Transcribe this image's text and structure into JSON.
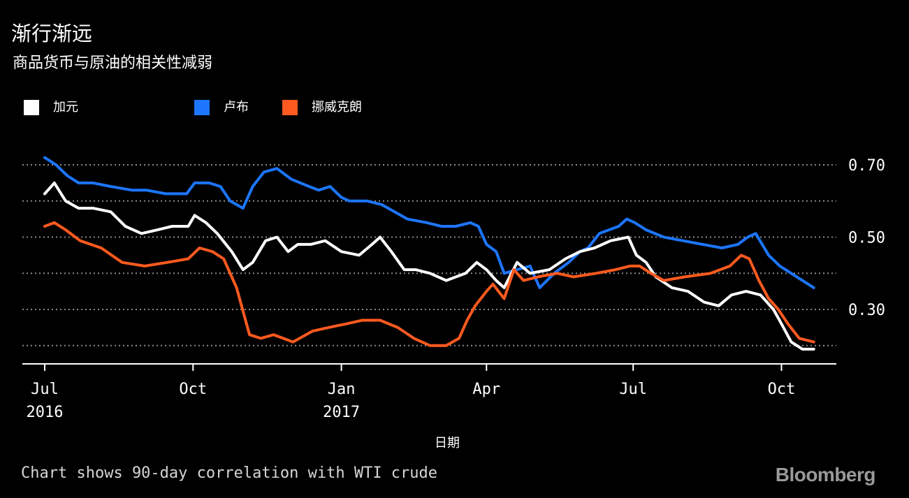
{
  "title": "渐行渐远",
  "subtitle": "商品货币与原油的相关性减弱",
  "xaxis_title": "日期",
  "footnote": "Chart shows 90-day correlation with WTI crude",
  "brand": "Bloomberg",
  "legend": [
    {
      "label": "加元",
      "color": "#ffffff"
    },
    {
      "label": "卢布",
      "color": "#1c76ff"
    },
    {
      "label": "挪威克朗",
      "color": "#ff5a1f"
    }
  ],
  "chart_data": {
    "type": "line",
    "title": "渐行渐远",
    "subtitle": "商品货币与原油的相关性减弱",
    "xlabel": "日期",
    "ylabel": "",
    "ylim": [
      0.17,
      0.75
    ],
    "x_range": [
      "2016-07-01",
      "2017-10-22"
    ],
    "y_ticks": [
      0.3,
      0.5,
      0.7
    ],
    "y_tick_labels": [
      "0.30",
      "0.50",
      "0.70"
    ],
    "y_gridlines": [
      0.2,
      0.3,
      0.4,
      0.5,
      0.6,
      0.7
    ],
    "grid": true,
    "legend_position": "top-left",
    "x_ticks": [
      {
        "date": "2016-07-01",
        "label": "Jul",
        "sublabel": "2016"
      },
      {
        "date": "2016-10-01",
        "label": "Oct",
        "sublabel": ""
      },
      {
        "date": "2017-01-01",
        "label": "Jan",
        "sublabel": "2017"
      },
      {
        "date": "2017-04-01",
        "label": "Apr",
        "sublabel": ""
      },
      {
        "date": "2017-07-01",
        "label": "Jul",
        "sublabel": ""
      },
      {
        "date": "2017-10-01",
        "label": "Oct",
        "sublabel": ""
      }
    ],
    "series": [
      {
        "name": "卢布",
        "color": "#1c76ff",
        "x": [
          "2016-07-01",
          "2016-07-08",
          "2016-07-15",
          "2016-07-22",
          "2016-07-31",
          "2016-08-11",
          "2016-08-24",
          "2016-09-02",
          "2016-09-14",
          "2016-09-27",
          "2016-10-02",
          "2016-10-11",
          "2016-10-18",
          "2016-10-24",
          "2016-11-01",
          "2016-11-07",
          "2016-11-14",
          "2016-11-22",
          "2016-12-01",
          "2016-12-12",
          "2016-12-18",
          "2016-12-25",
          "2017-01-01",
          "2017-01-06",
          "2017-01-17",
          "2017-01-26",
          "2017-02-03",
          "2017-02-11",
          "2017-02-23",
          "2017-03-04",
          "2017-03-13",
          "2017-03-22",
          "2017-03-27",
          "2017-04-01",
          "2017-04-07",
          "2017-04-12",
          "2017-04-20",
          "2017-04-28",
          "2017-05-04",
          "2017-05-13",
          "2017-05-22",
          "2017-05-29",
          "2017-06-03",
          "2017-06-10",
          "2017-06-16",
          "2017-06-22",
          "2017-06-27",
          "2017-07-02",
          "2017-07-09",
          "2017-07-20",
          "2017-08-01",
          "2017-08-13",
          "2017-08-25",
          "2017-09-04",
          "2017-09-10",
          "2017-09-15",
          "2017-09-23",
          "2017-09-30",
          "2017-10-07",
          "2017-10-14",
          "2017-10-21"
        ],
        "values": [
          0.72,
          0.7,
          0.67,
          0.65,
          0.65,
          0.64,
          0.63,
          0.63,
          0.62,
          0.62,
          0.65,
          0.65,
          0.64,
          0.6,
          0.58,
          0.64,
          0.68,
          0.69,
          0.66,
          0.64,
          0.63,
          0.64,
          0.61,
          0.6,
          0.6,
          0.59,
          0.57,
          0.55,
          0.54,
          0.53,
          0.53,
          0.54,
          0.53,
          0.48,
          0.46,
          0.4,
          0.41,
          0.42,
          0.36,
          0.4,
          0.43,
          0.46,
          0.47,
          0.51,
          0.52,
          0.53,
          0.55,
          0.54,
          0.52,
          0.5,
          0.49,
          0.48,
          0.47,
          0.48,
          0.5,
          0.51,
          0.45,
          0.42,
          0.4,
          0.38,
          0.36
        ]
      },
      {
        "name": "加元",
        "color": "#ffffff",
        "x": [
          "2016-07-01",
          "2016-07-07",
          "2016-07-14",
          "2016-07-22",
          "2016-07-31",
          "2016-08-11",
          "2016-08-20",
          "2016-08-30",
          "2016-09-09",
          "2016-09-18",
          "2016-09-28",
          "2016-10-02",
          "2016-10-09",
          "2016-10-16",
          "2016-10-25",
          "2016-11-01",
          "2016-11-07",
          "2016-11-15",
          "2016-11-22",
          "2016-11-29",
          "2016-12-05",
          "2016-12-13",
          "2016-12-22",
          "2017-01-01",
          "2017-01-12",
          "2017-01-20",
          "2017-01-25",
          "2017-02-01",
          "2017-02-09",
          "2017-02-16",
          "2017-02-25",
          "2017-03-07",
          "2017-03-19",
          "2017-03-26",
          "2017-04-01",
          "2017-04-07",
          "2017-04-12",
          "2017-04-20",
          "2017-04-28",
          "2017-05-10",
          "2017-05-20",
          "2017-05-29",
          "2017-06-07",
          "2017-06-17",
          "2017-06-28",
          "2017-07-03",
          "2017-07-09",
          "2017-07-15",
          "2017-07-25",
          "2017-08-04",
          "2017-08-14",
          "2017-08-23",
          "2017-08-31",
          "2017-09-09",
          "2017-09-18",
          "2017-09-26",
          "2017-10-01",
          "2017-10-07",
          "2017-10-14",
          "2017-10-21"
        ],
        "values": [
          0.62,
          0.65,
          0.6,
          0.58,
          0.58,
          0.57,
          0.53,
          0.51,
          0.52,
          0.53,
          0.53,
          0.56,
          0.54,
          0.51,
          0.46,
          0.41,
          0.43,
          0.49,
          0.5,
          0.46,
          0.48,
          0.48,
          0.49,
          0.46,
          0.45,
          0.48,
          0.5,
          0.46,
          0.41,
          0.41,
          0.4,
          0.38,
          0.4,
          0.43,
          0.41,
          0.38,
          0.36,
          0.43,
          0.4,
          0.41,
          0.44,
          0.46,
          0.47,
          0.49,
          0.5,
          0.45,
          0.43,
          0.39,
          0.36,
          0.35,
          0.32,
          0.31,
          0.34,
          0.35,
          0.34,
          0.3,
          0.26,
          0.21,
          0.19,
          0.19
        ]
      },
      {
        "name": "挪威克朗",
        "color": "#ff5a1f",
        "x": [
          "2016-07-01",
          "2016-07-07",
          "2016-07-14",
          "2016-07-23",
          "2016-08-05",
          "2016-08-18",
          "2016-09-01",
          "2016-09-15",
          "2016-09-28",
          "2016-10-05",
          "2016-10-13",
          "2016-10-20",
          "2016-10-28",
          "2016-11-05",
          "2016-11-12",
          "2016-11-20",
          "2016-12-02",
          "2016-12-14",
          "2016-12-24",
          "2017-01-04",
          "2017-01-14",
          "2017-01-25",
          "2017-02-05",
          "2017-02-15",
          "2017-02-25",
          "2017-03-07",
          "2017-03-15",
          "2017-03-20",
          "2017-03-25",
          "2017-04-01",
          "2017-04-05",
          "2017-04-12",
          "2017-04-18",
          "2017-04-24",
          "2017-05-03",
          "2017-05-15",
          "2017-05-25",
          "2017-06-08",
          "2017-06-20",
          "2017-06-29",
          "2017-07-05",
          "2017-07-12",
          "2017-07-20",
          "2017-08-02",
          "2017-08-18",
          "2017-08-30",
          "2017-09-06",
          "2017-09-11",
          "2017-09-17",
          "2017-09-23",
          "2017-09-29",
          "2017-10-05",
          "2017-10-12",
          "2017-10-21"
        ],
        "values": [
          0.53,
          0.54,
          0.52,
          0.49,
          0.47,
          0.43,
          0.42,
          0.43,
          0.44,
          0.47,
          0.46,
          0.44,
          0.36,
          0.23,
          0.22,
          0.23,
          0.21,
          0.24,
          0.25,
          0.26,
          0.27,
          0.27,
          0.25,
          0.22,
          0.2,
          0.2,
          0.22,
          0.27,
          0.31,
          0.35,
          0.37,
          0.33,
          0.41,
          0.38,
          0.39,
          0.4,
          0.39,
          0.4,
          0.41,
          0.42,
          0.42,
          0.4,
          0.38,
          0.39,
          0.4,
          0.42,
          0.45,
          0.44,
          0.38,
          0.33,
          0.3,
          0.26,
          0.22,
          0.21
        ]
      }
    ]
  }
}
